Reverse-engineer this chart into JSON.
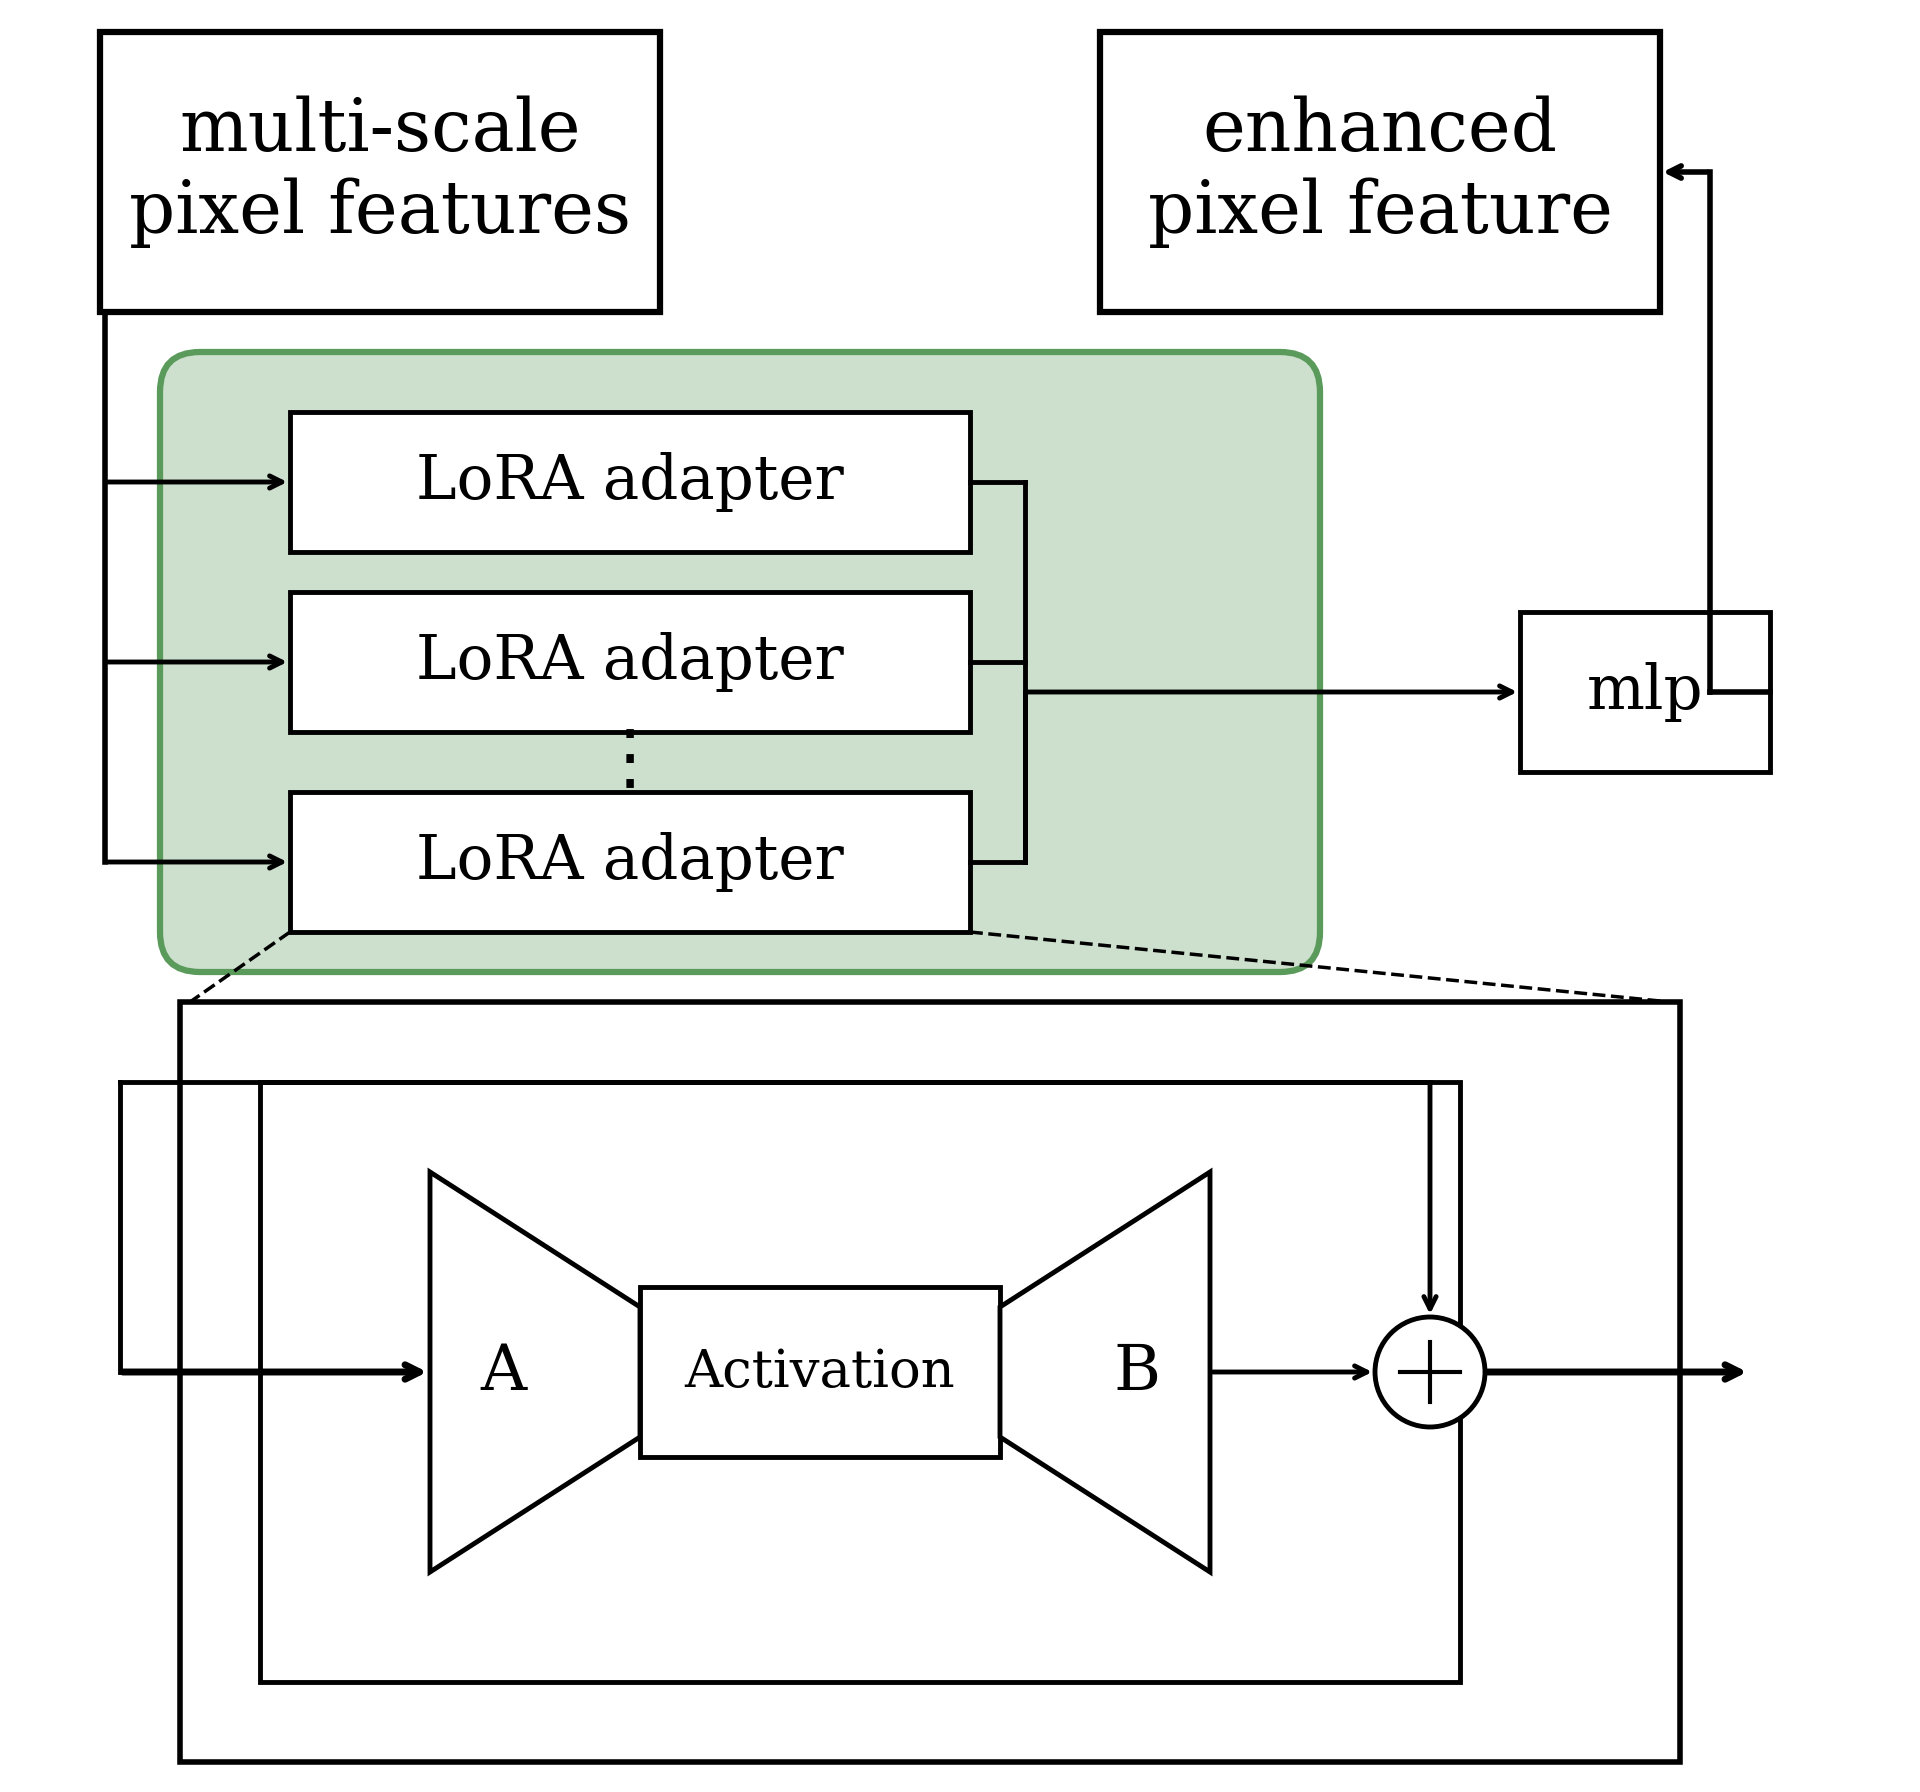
{
  "bg_color": "#ffffff",
  "green_bg": "#cde0cd",
  "green_border": "#5a9a5a",
  "box_color": "#ffffff",
  "box_border": "#000000",
  "text_color": "#000000",
  "title_box1": "multi-scale\npixel features",
  "title_box2": "enhanced\npixel feature",
  "lora_labels": [
    "LoRA adapter",
    "LoRA adapter",
    "LoRA adapter"
  ],
  "mlp_label": "mlp",
  "a_label": "A",
  "activation_label": "Activation",
  "b_label": "B",
  "line_width": 3.5,
  "font_size_title": 52,
  "font_size_lora": 44,
  "font_size_mlp": 44,
  "font_size_ab": 46,
  "font_size_act": 38,
  "font_size_dots": 52
}
